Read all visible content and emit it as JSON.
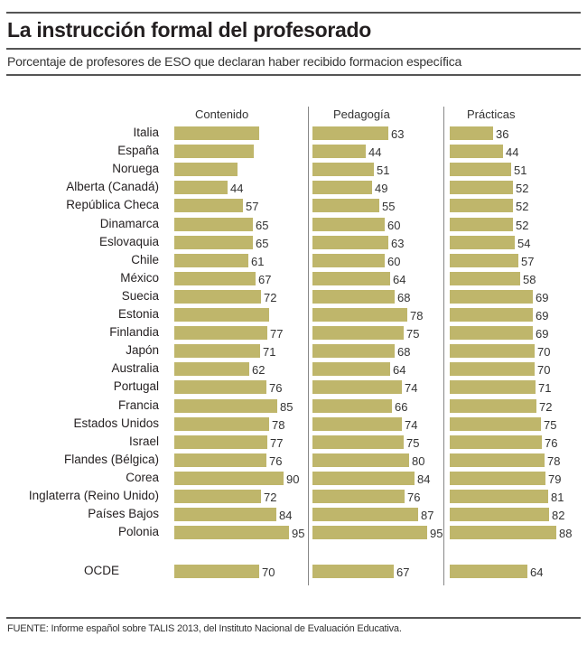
{
  "chart_data": {
    "type": "bar",
    "orientation": "horizontal",
    "title": "La instrucción formal del profesorado",
    "subtitle": "Porcentaje de profesores de ESO que declaran haber recibido formacion específica",
    "source": "FUENTE: Informe español sobre TALIS 2013, del Instituto Nacional de Evaluación Educativa.",
    "xlabel": "",
    "ylabel": "",
    "xlim": [
      0,
      100
    ],
    "grid": false,
    "legend": "none",
    "categories": [
      "Italia",
      "España",
      "Noruega",
      "Alberta (Canadá)",
      "República Checa",
      "Dinamarca",
      "Eslovaquia",
      "Chile",
      "México",
      "Suecia",
      "Estonia",
      "Finlandia",
      "Japón",
      "Australia",
      "Portugal",
      "Francia",
      "Estados Unidos",
      "Israel",
      "Flandes (Bélgica)",
      "Corea",
      "Inglaterra (Reino Unido)",
      "Países Bajos",
      "Polonia"
    ],
    "series": [
      {
        "name": "Contenido",
        "values": [
          70,
          66,
          52,
          44,
          57,
          65,
          65,
          61,
          67,
          72,
          78,
          77,
          71,
          62,
          76,
          85,
          78,
          77,
          76,
          90,
          72,
          84,
          95
        ],
        "labels": [
          "",
          "",
          "",
          "44",
          "57",
          "65",
          "65",
          "61",
          "67",
          "72",
          "",
          "77",
          "71",
          "62",
          "76",
          "85",
          "78",
          "77",
          "76",
          "90",
          "72",
          "84",
          "95"
        ]
      },
      {
        "name": "Pedagogía",
        "values": [
          63,
          44,
          51,
          49,
          55,
          60,
          63,
          60,
          64,
          68,
          78,
          75,
          68,
          64,
          74,
          66,
          74,
          75,
          80,
          84,
          76,
          87,
          95
        ],
        "labels": [
          "63",
          "44",
          "51",
          "49",
          "55",
          "60",
          "63",
          "60",
          "64",
          "68",
          "78",
          "75",
          "68",
          "64",
          "74",
          "66",
          "74",
          "75",
          "80",
          "84",
          "76",
          "87",
          "95"
        ]
      },
      {
        "name": "Prácticas",
        "values": [
          36,
          44,
          51,
          52,
          52,
          52,
          54,
          57,
          58,
          69,
          69,
          69,
          70,
          70,
          71,
          72,
          75,
          76,
          78,
          79,
          81,
          82,
          88
        ],
        "labels": [
          "36",
          "44",
          "51",
          "52",
          "52",
          "52",
          "54",
          "57",
          "58",
          "69",
          "69",
          "69",
          "70",
          "70",
          "71",
          "72",
          "75",
          "76",
          "78",
          "79",
          "81",
          "82",
          "88"
        ]
      }
    ],
    "summary_row": {
      "category": "OCDE",
      "values": [
        70,
        67,
        64
      ],
      "labels": [
        "70",
        "67",
        "64"
      ]
    }
  },
  "colors": {
    "bar": "#bfb66b",
    "rule": "#555555",
    "separator": "#888888"
  }
}
